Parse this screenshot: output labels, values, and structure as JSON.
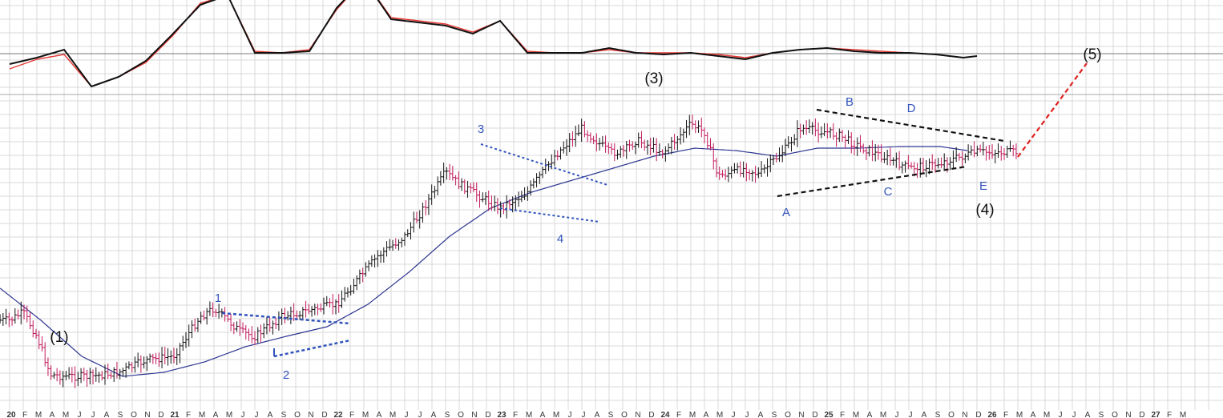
{
  "chart_data": {
    "type": "line",
    "title": "",
    "xlabel": "",
    "ylabel": "",
    "grid": true,
    "colors": {
      "background": "#ffffff",
      "grid": "#d9d9d9",
      "separator": "#777777",
      "price_up": "#111111",
      "price_down": "#c2185b",
      "moving_average": "#2c3590",
      "macd": "#111111",
      "signal": "#e53935",
      "wave_blue": "#3355bb",
      "wave_black": "#111111",
      "projection": "#e02020"
    },
    "x_axis_tick_labels": [
      "20",
      "F",
      "M",
      "A",
      "M",
      "J",
      "J",
      "A",
      "S",
      "O",
      "N",
      "D",
      "21",
      "F",
      "M",
      "A",
      "M",
      "J",
      "J",
      "A",
      "S",
      "O",
      "N",
      "D",
      "22",
      "F",
      "M",
      "A",
      "M",
      "J",
      "J",
      "A",
      "S",
      "O",
      "N",
      "D",
      "23",
      "F",
      "M",
      "A",
      "M",
      "J",
      "J",
      "A",
      "S",
      "O",
      "N",
      "D",
      "24",
      "F",
      "M",
      "A",
      "M",
      "J",
      "J",
      "A",
      "S",
      "O",
      "N",
      "D",
      "25",
      "F",
      "M",
      "A",
      "M",
      "J",
      "J",
      "A",
      "S",
      "O",
      "N",
      "D",
      "26",
      "F",
      "M",
      "A",
      "M",
      "J",
      "J",
      "A",
      "S",
      "O",
      "N",
      "D",
      "27",
      "F",
      "M"
    ],
    "price_series_approx": {
      "name": "",
      "months_since_start": [
        0,
        1,
        2,
        3,
        4,
        6,
        8,
        10,
        12,
        14,
        15,
        17,
        18,
        20,
        24,
        27,
        29,
        30,
        32,
        33,
        34,
        36,
        38,
        40,
        42,
        44,
        45,
        46,
        48,
        50,
        51,
        52,
        54,
        55,
        57,
        58,
        60,
        61,
        62,
        64,
        66,
        68,
        70,
        71
      ],
      "values": [
        400,
        390,
        420,
        468,
        470,
        470,
        465,
        450,
        445,
        395,
        385,
        415,
        420,
        395,
        380,
        320,
        295,
        270,
        215,
        230,
        240,
        260,
        240,
        195,
        160,
        190,
        190,
        175,
        190,
        155,
        165,
        220,
        210,
        218,
        185,
        160,
        165,
        170,
        180,
        195,
        210,
        205,
        195,
        190
      ]
    },
    "moving_average_approx": {
      "months_since_start": [
        0,
        3,
        6,
        9,
        12,
        15,
        18,
        21,
        24,
        27,
        30,
        33,
        36,
        39,
        42,
        45,
        48,
        51,
        54,
        57,
        60,
        63,
        66,
        69,
        71
      ],
      "values": [
        360,
        400,
        445,
        470,
        465,
        452,
        433,
        420,
        408,
        380,
        340,
        295,
        260,
        240,
        225,
        210,
        195,
        185,
        188,
        195,
        185,
        185,
        183,
        183,
        188
      ]
    },
    "macd_approx": {
      "months_since_start": [
        0,
        2,
        4,
        6,
        8,
        10,
        12,
        14,
        16,
        18,
        20,
        22,
        24,
        26,
        28,
        30,
        32,
        34,
        36,
        38,
        40,
        42,
        44,
        46,
        48,
        50,
        52,
        54,
        56,
        58,
        60,
        62,
        64,
        66,
        68,
        70,
        71
      ],
      "macd": [
        80,
        72,
        62,
        108,
        96,
        76,
        42,
        6,
        -6,
        66,
        66,
        64,
        10,
        -26,
        24,
        28,
        32,
        42,
        26,
        66,
        66,
        66,
        60,
        66,
        68,
        66,
        70,
        74,
        66,
        62,
        60,
        64,
        66,
        66,
        68,
        72,
        70
      ],
      "signal": [
        86,
        74,
        68,
        108,
        96,
        78,
        44,
        4,
        -6,
        64,
        66,
        62,
        12,
        -26,
        22,
        26,
        30,
        40,
        26,
        64,
        66,
        66,
        62,
        66,
        66,
        66,
        68,
        72,
        66,
        62,
        60,
        62,
        64,
        66,
        68,
        72,
        70
      ]
    },
    "annotations": [
      {
        "label": "(1)",
        "style": "black"
      },
      {
        "label": "(3)",
        "style": "black"
      },
      {
        "label": "(4)",
        "style": "black"
      },
      {
        "label": "(5)",
        "style": "black"
      },
      {
        "label": "1",
        "style": "blue"
      },
      {
        "label": "2",
        "style": "blue"
      },
      {
        "label": "3",
        "style": "blue"
      },
      {
        "label": "4",
        "style": "blue"
      },
      {
        "label": "A",
        "style": "blue"
      },
      {
        "label": "B",
        "style": "blue"
      },
      {
        "label": "C",
        "style": "blue"
      },
      {
        "label": "D",
        "style": "blue"
      },
      {
        "label": "E",
        "style": "blue"
      }
    ]
  }
}
